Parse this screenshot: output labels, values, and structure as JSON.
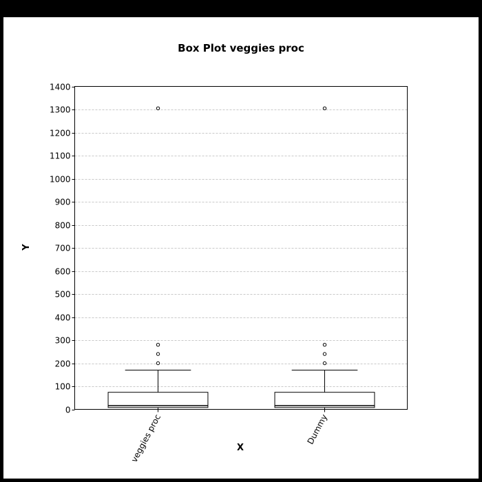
{
  "chart_data": {
    "type": "box",
    "title": "Box Plot veggies proc",
    "xlabel": "X",
    "ylabel": "Y",
    "ylim": [
      0,
      1400
    ],
    "yticks": [
      0,
      100,
      200,
      300,
      400,
      500,
      600,
      700,
      800,
      900,
      1000,
      1100,
      1200,
      1300,
      1400
    ],
    "grid": "horizontal-dashed",
    "categories": [
      "veggies proc",
      "Dummy"
    ],
    "series": [
      {
        "category": "veggies proc",
        "whisker_low": 0,
        "q1": 8,
        "median": 16,
        "q3": 74,
        "whisker_high": 170,
        "outliers": [
          200,
          240,
          280,
          1305
        ]
      },
      {
        "category": "Dummy",
        "whisker_low": 0,
        "q1": 8,
        "median": 16,
        "q3": 74,
        "whisker_high": 170,
        "outliers": [
          200,
          240,
          280,
          1305
        ]
      }
    ]
  }
}
